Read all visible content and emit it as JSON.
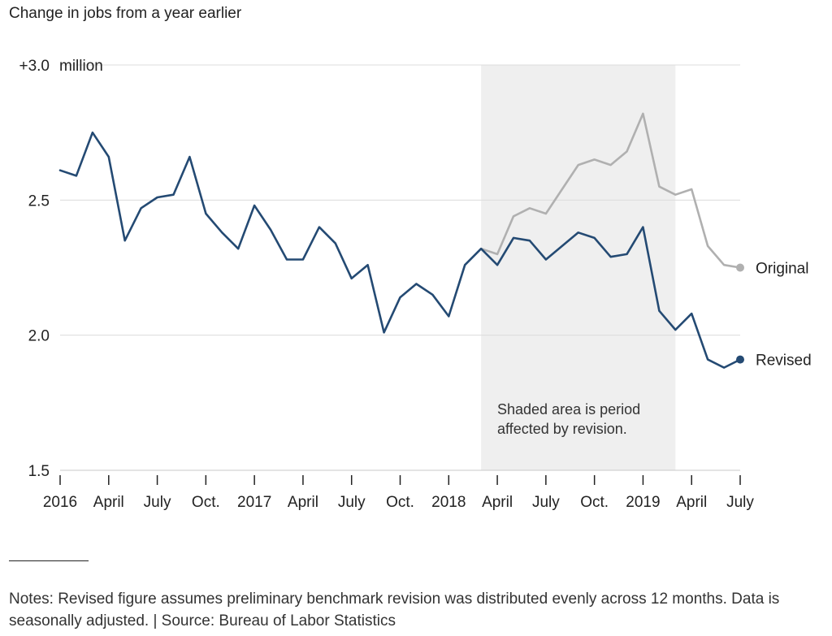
{
  "chart_data": {
    "type": "line",
    "title": "Change in jobs from a year earlier",
    "y_unit": "million",
    "ylim": [
      1.5,
      3.0
    ],
    "y_ticks": [
      {
        "value": 3.0,
        "label": "+3.0"
      },
      {
        "value": 2.5,
        "label": "2.5"
      },
      {
        "value": 2.0,
        "label": "2.0"
      },
      {
        "value": 1.5,
        "label": "1.5"
      }
    ],
    "x_ticks": [
      {
        "date": "2016-01",
        "label": "2016"
      },
      {
        "date": "2016-04",
        "label": "April"
      },
      {
        "date": "2016-07",
        "label": "July"
      },
      {
        "date": "2016-10",
        "label": "Oct."
      },
      {
        "date": "2017-01",
        "label": "2017"
      },
      {
        "date": "2017-04",
        "label": "April"
      },
      {
        "date": "2017-07",
        "label": "July"
      },
      {
        "date": "2017-10",
        "label": "Oct."
      },
      {
        "date": "2018-01",
        "label": "2018"
      },
      {
        "date": "2018-04",
        "label": "April"
      },
      {
        "date": "2018-07",
        "label": "July"
      },
      {
        "date": "2018-10",
        "label": "Oct."
      },
      {
        "date": "2019-01",
        "label": "2019"
      },
      {
        "date": "2019-04",
        "label": "April"
      },
      {
        "date": "2019-07",
        "label": "July"
      }
    ],
    "shaded_period": {
      "start": "2018-03",
      "end": "2019-03",
      "label_lines": [
        "Shaded area is period",
        "affected by revision."
      ]
    },
    "series": [
      {
        "name": "Revised",
        "color": "#244a73",
        "points": [
          [
            "2016-01",
            2.61
          ],
          [
            "2016-02",
            2.59
          ],
          [
            "2016-03",
            2.75
          ],
          [
            "2016-04",
            2.66
          ],
          [
            "2016-05",
            2.35
          ],
          [
            "2016-06",
            2.47
          ],
          [
            "2016-07",
            2.51
          ],
          [
            "2016-08",
            2.52
          ],
          [
            "2016-09",
            2.66
          ],
          [
            "2016-10",
            2.45
          ],
          [
            "2016-11",
            2.38
          ],
          [
            "2016-12",
            2.32
          ],
          [
            "2017-01",
            2.48
          ],
          [
            "2017-02",
            2.39
          ],
          [
            "2017-03",
            2.28
          ],
          [
            "2017-04",
            2.28
          ],
          [
            "2017-05",
            2.4
          ],
          [
            "2017-06",
            2.34
          ],
          [
            "2017-07",
            2.21
          ],
          [
            "2017-08",
            2.26
          ],
          [
            "2017-09",
            2.01
          ],
          [
            "2017-10",
            2.14
          ],
          [
            "2017-11",
            2.19
          ],
          [
            "2017-12",
            2.15
          ],
          [
            "2018-01",
            2.07
          ],
          [
            "2018-02",
            2.26
          ],
          [
            "2018-03",
            2.32
          ],
          [
            "2018-04",
            2.26
          ],
          [
            "2018-05",
            2.36
          ],
          [
            "2018-06",
            2.35
          ],
          [
            "2018-07",
            2.28
          ],
          [
            "2018-08",
            2.33
          ],
          [
            "2018-09",
            2.38
          ],
          [
            "2018-10",
            2.36
          ],
          [
            "2018-11",
            2.29
          ],
          [
            "2018-12",
            2.3
          ],
          [
            "2019-01",
            2.4
          ],
          [
            "2019-02",
            2.09
          ],
          [
            "2019-03",
            2.02
          ],
          [
            "2019-04",
            2.08
          ],
          [
            "2019-05",
            1.91
          ],
          [
            "2019-06",
            1.88
          ],
          [
            "2019-07",
            1.91
          ]
        ]
      },
      {
        "name": "Original",
        "color": "#b0b0b0",
        "points": [
          [
            "2018-03",
            2.32
          ],
          [
            "2018-04",
            2.3
          ],
          [
            "2018-05",
            2.44
          ],
          [
            "2018-06",
            2.47
          ],
          [
            "2018-07",
            2.45
          ],
          [
            "2018-08",
            2.54
          ],
          [
            "2018-09",
            2.63
          ],
          [
            "2018-10",
            2.65
          ],
          [
            "2018-11",
            2.63
          ],
          [
            "2018-12",
            2.68
          ],
          [
            "2019-01",
            2.82
          ],
          [
            "2019-02",
            2.55
          ],
          [
            "2019-03",
            2.52
          ],
          [
            "2019-04",
            2.54
          ],
          [
            "2019-05",
            2.33
          ],
          [
            "2019-06",
            2.26
          ],
          [
            "2019-07",
            2.25
          ]
        ]
      }
    ]
  },
  "notes": "Notes: Revised figure assumes preliminary benchmark revision was distributed evenly across 12 months. Data is seasonally adjusted. | Source: Bureau of Labor Statistics"
}
